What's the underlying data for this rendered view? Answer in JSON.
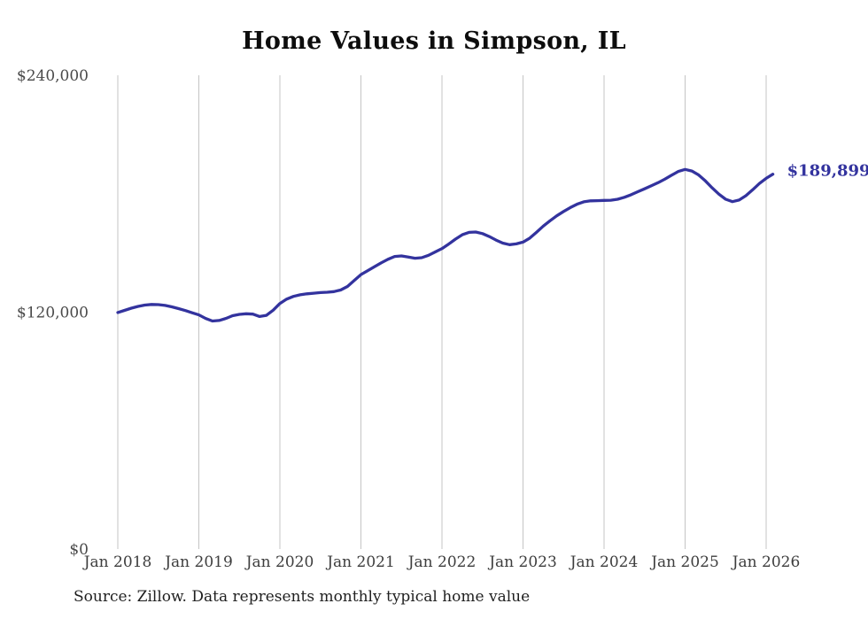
{
  "chart_data": {
    "type": "line",
    "title": "Home Values in Simpson, IL",
    "xlabel": "",
    "ylabel": "",
    "ylim": [
      0,
      240000
    ],
    "y_ticks": [
      0,
      120000,
      240000
    ],
    "y_tick_labels": [
      "$0",
      "$120,000",
      "$240,000"
    ],
    "x_tick_labels": [
      "Jan 2018",
      "Jan 2019",
      "Jan 2020",
      "Jan 2021",
      "Jan 2022",
      "Jan 2023",
      "Jan 2024",
      "Jan 2025",
      "Jan 2026"
    ],
    "grid": "vertical-only",
    "legend_position": "none",
    "end_label": "$189,899",
    "series": [
      {
        "name": "Monthly typical home value",
        "start_month": "Jan 2018",
        "interval": "monthly",
        "values": [
          119800,
          120900,
          122000,
          122900,
          123600,
          123900,
          123800,
          123400,
          122700,
          121800,
          120800,
          119700,
          118600,
          116800,
          115500,
          115800,
          116800,
          118200,
          118900,
          119200,
          119000,
          117800,
          118400,
          121000,
          124400,
          126600,
          128000,
          128800,
          129300,
          129600,
          129900,
          130100,
          130400,
          131200,
          133000,
          136000,
          139000,
          141000,
          143000,
          145000,
          146800,
          148200,
          148500,
          147900,
          147300,
          147600,
          148800,
          150500,
          152200,
          154500,
          157000,
          159200,
          160400,
          160600,
          159800,
          158300,
          156500,
          155000,
          154200,
          154600,
          155500,
          157500,
          160500,
          163600,
          166300,
          168800,
          171000,
          173000,
          174700,
          175900,
          176400,
          176500,
          176600,
          176700,
          177200,
          178200,
          179500,
          181000,
          182500,
          184000,
          185600,
          187400,
          189400,
          191300,
          192300,
          191500,
          189500,
          186500,
          183000,
          179800,
          177200,
          176000,
          176800,
          179000,
          182000,
          185200,
          187800,
          189899
        ]
      }
    ]
  },
  "source_note": "Source: Zillow. Data represents monthly typical home value",
  "colors": {
    "line": "#33339E",
    "end_label": "#33339E",
    "grid": "#C4C4C4",
    "x_tick_text": "#3D3D3D",
    "y_tick_text": "#4A4A4A",
    "title_text": "#0D0D0D",
    "source_text": "#1F1F1F",
    "background": "#FFFFFF"
  }
}
